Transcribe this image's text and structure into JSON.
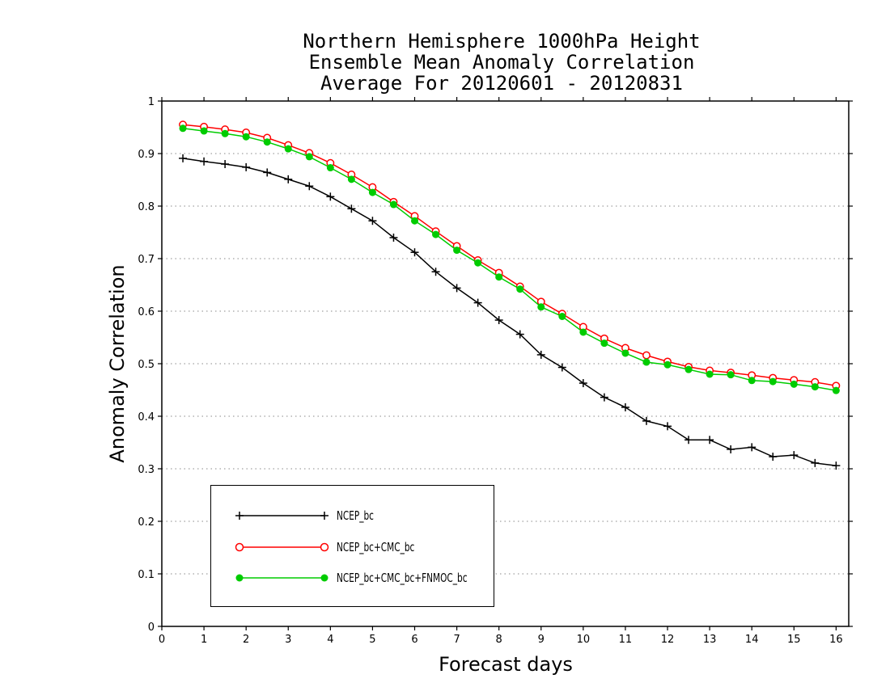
{
  "title_lines": [
    "Northern Hemisphere 1000hPa Height",
    "Ensemble Mean Anomaly Correlation",
    "Average For 20120601 - 20120831"
  ],
  "chart_data": {
    "type": "line",
    "xlabel": "Forecast days",
    "ylabel": "Anomaly Correlation",
    "xlim": [
      0,
      16.3
    ],
    "ylim": [
      0,
      1
    ],
    "xticks": [
      0,
      1,
      2,
      3,
      4,
      5,
      6,
      7,
      8,
      9,
      10,
      11,
      12,
      13,
      14,
      15,
      16
    ],
    "yticks": [
      0,
      0.1,
      0.2,
      0.3,
      0.4,
      0.5,
      0.6,
      0.7,
      0.8,
      0.9,
      1
    ],
    "ytick_labels": [
      "0",
      "0.1",
      "0.2",
      "0.3",
      "0.4",
      "0.5",
      "0.6",
      "0.7",
      "0.8",
      "0.9",
      "1"
    ],
    "grid": "horizontal dotted",
    "legend_position": "bottom-left",
    "x": [
      0.5,
      1,
      1.5,
      2,
      2.5,
      3,
      3.5,
      4,
      4.5,
      5,
      5.5,
      6,
      6.5,
      7,
      7.5,
      8,
      8.5,
      9,
      9.5,
      10,
      10.5,
      11,
      11.5,
      12,
      12.5,
      13,
      13.5,
      14,
      14.5,
      15,
      15.5,
      16
    ],
    "series": [
      {
        "name": "NCEP_bc",
        "color": "#000000",
        "marker": "plus",
        "values": [
          0.891,
          0.885,
          0.88,
          0.874,
          0.864,
          0.851,
          0.838,
          0.818,
          0.795,
          0.772,
          0.74,
          0.712,
          0.675,
          0.644,
          0.616,
          0.583,
          0.556,
          0.517,
          0.493,
          0.463,
          0.436,
          0.417,
          0.391,
          0.381,
          0.355,
          0.355,
          0.337,
          0.341,
          0.323,
          0.326,
          0.311,
          0.306
        ]
      },
      {
        "name": "NCEP_bc+CMC_bc",
        "color": "#ff0000",
        "marker": "open-circle",
        "values": [
          0.955,
          0.951,
          0.946,
          0.94,
          0.93,
          0.916,
          0.901,
          0.882,
          0.86,
          0.836,
          0.808,
          0.781,
          0.752,
          0.724,
          0.697,
          0.673,
          0.647,
          0.618,
          0.595,
          0.57,
          0.548,
          0.53,
          0.516,
          0.504,
          0.494,
          0.487,
          0.483,
          0.478,
          0.473,
          0.469,
          0.465,
          0.458
        ]
      },
      {
        "name": "NCEP_bc+CMC_bc+FNMOC_bc",
        "color": "#00cc00",
        "marker": "filled-circle",
        "values": [
          0.948,
          0.943,
          0.938,
          0.932,
          0.922,
          0.909,
          0.894,
          0.873,
          0.851,
          0.826,
          0.803,
          0.772,
          0.746,
          0.716,
          0.692,
          0.665,
          0.642,
          0.608,
          0.59,
          0.56,
          0.539,
          0.52,
          0.503,
          0.498,
          0.489,
          0.48,
          0.479,
          0.468,
          0.466,
          0.461,
          0.456,
          0.449
        ]
      }
    ]
  }
}
